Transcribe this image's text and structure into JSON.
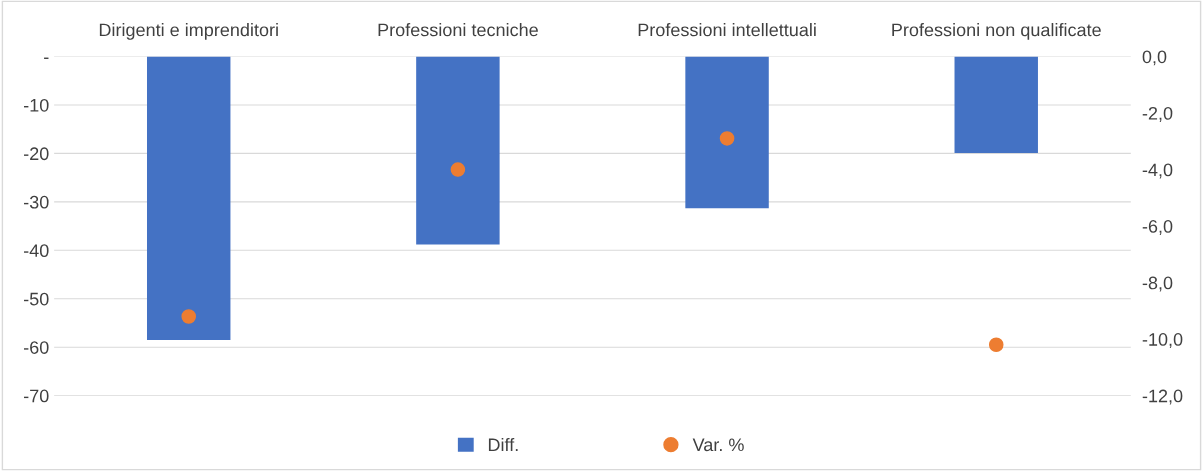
{
  "chart_data": {
    "type": "bar",
    "categories": [
      "Dirigenti e imprenditori",
      "Professioni tecniche",
      "Professioni intellettuali",
      "Professioni non qualificate"
    ],
    "series": [
      {
        "name": "Diff.",
        "color": "#4472c4",
        "values": [
          -58.5,
          -38.8,
          -31.3,
          -19.9
        ]
      },
      {
        "name": "Var. %",
        "type": "scatter",
        "axis": "y2",
        "color": "#ed7d31",
        "marker": "circle",
        "values": [
          -9.2,
          -4.0,
          -2.9,
          -10.2
        ]
      }
    ],
    "ylim": [
      -70,
      0
    ],
    "yticks": [
      {
        "value": -70,
        "label": "-70"
      },
      {
        "value": -60,
        "label": "-60"
      },
      {
        "value": -50,
        "label": "-50"
      },
      {
        "value": -40,
        "label": "-40"
      },
      {
        "value": -30,
        "label": "-30"
      },
      {
        "value": -20,
        "label": "-20"
      },
      {
        "value": -10,
        "label": "-10"
      },
      {
        "value": 0,
        "label": "-"
      }
    ],
    "y2lim": [
      -12,
      0
    ],
    "y2ticks": [
      {
        "value": -12,
        "label": "-12,0"
      },
      {
        "value": -10,
        "label": "-10,0"
      },
      {
        "value": -8,
        "label": "-8,0"
      },
      {
        "value": -6,
        "label": "-6,0"
      },
      {
        "value": -4,
        "label": "-4,0"
      },
      {
        "value": -2,
        "label": "-2,0"
      },
      {
        "value": 0,
        "label": "0,0"
      }
    ],
    "grid": "y",
    "legend": "bottom"
  }
}
